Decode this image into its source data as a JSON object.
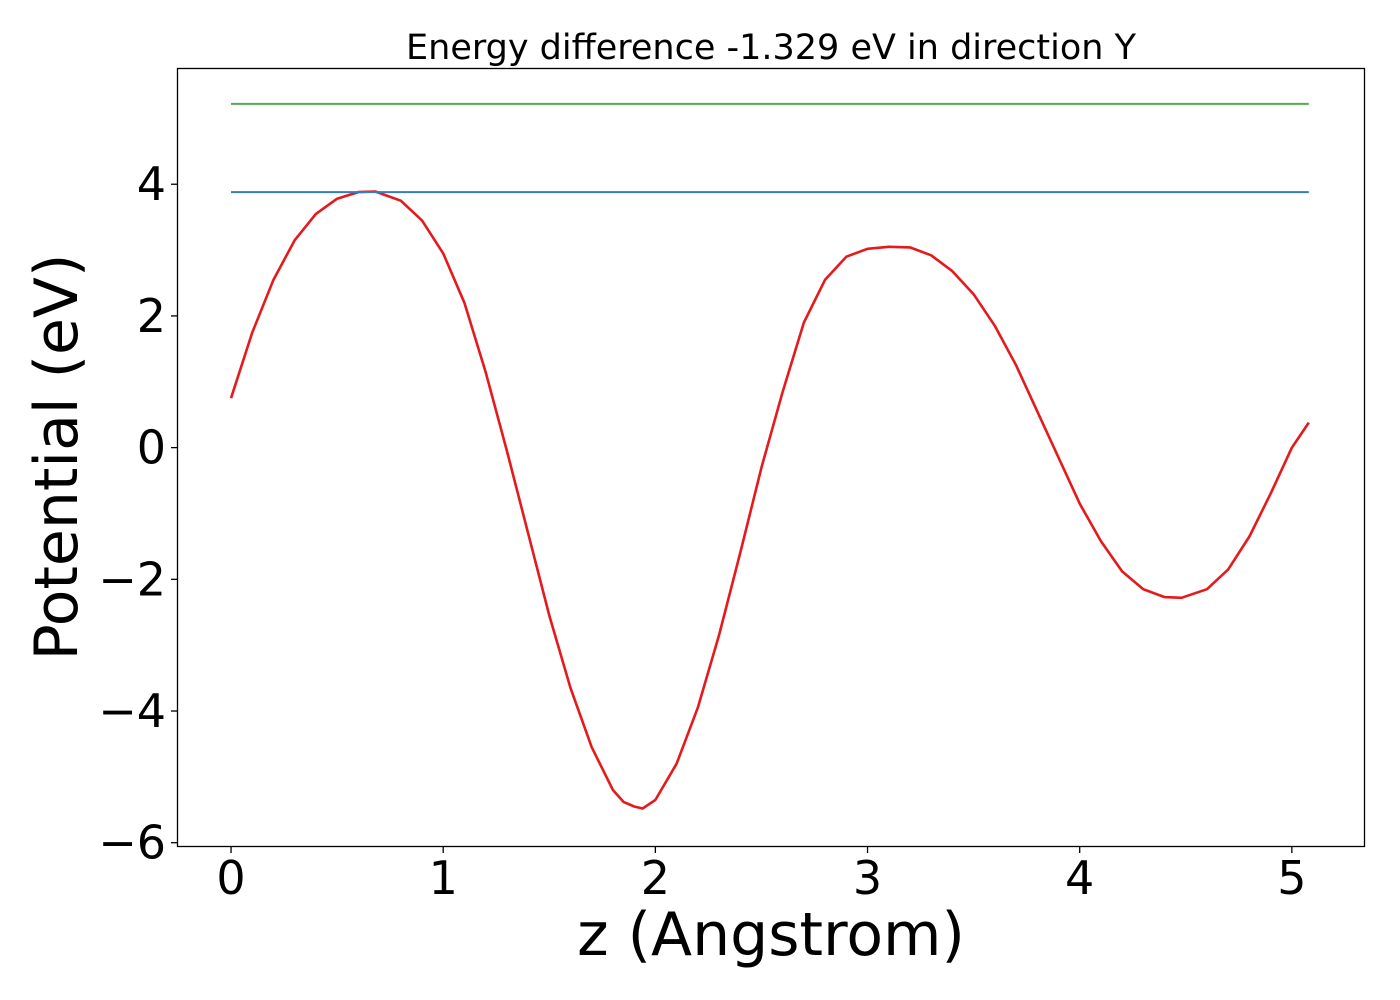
{
  "chart_data": {
    "type": "line",
    "title": "Energy difference -1.329 eV in direction Y",
    "xlabel": "z (Angstrom)",
    "ylabel": "Potential (eV)",
    "xlim": [
      -0.25,
      5.34
    ],
    "ylim": [
      -6.05,
      5.75
    ],
    "x_ticks": [
      0,
      1,
      2,
      3,
      4,
      5
    ],
    "x_tick_labels": [
      "0",
      "1",
      "2",
      "3",
      "4",
      "5"
    ],
    "y_ticks": [
      -6,
      -4,
      -2,
      0,
      2,
      4
    ],
    "y_tick_labels": [
      "−6",
      "−4",
      "−2",
      "0",
      "2",
      "4"
    ],
    "grid": false,
    "series": [
      {
        "color": "#e41a1c",
        "x": [
          0.0,
          0.1,
          0.2,
          0.3,
          0.4,
          0.5,
          0.6,
          0.68,
          0.8,
          0.9,
          1.0,
          1.1,
          1.2,
          1.3,
          1.4,
          1.5,
          1.6,
          1.7,
          1.8,
          1.85,
          1.9,
          1.94,
          2.0,
          2.1,
          2.2,
          2.3,
          2.4,
          2.5,
          2.6,
          2.7,
          2.8,
          2.9,
          3.0,
          3.1,
          3.2,
          3.3,
          3.4,
          3.5,
          3.6,
          3.7,
          3.8,
          3.9,
          4.0,
          4.1,
          4.2,
          4.3,
          4.4,
          4.48,
          4.6,
          4.7,
          4.8,
          4.9,
          5.0,
          5.08
        ],
        "y": [
          0.75,
          1.75,
          2.55,
          3.15,
          3.55,
          3.78,
          3.88,
          3.89,
          3.75,
          3.45,
          2.95,
          2.2,
          1.15,
          -0.05,
          -1.3,
          -2.55,
          -3.65,
          -4.55,
          -5.2,
          -5.38,
          -5.45,
          -5.48,
          -5.35,
          -4.8,
          -3.95,
          -2.85,
          -1.6,
          -0.3,
          0.85,
          1.9,
          2.55,
          2.9,
          3.02,
          3.05,
          3.04,
          2.92,
          2.68,
          2.33,
          1.85,
          1.25,
          0.55,
          -0.15,
          -0.85,
          -1.42,
          -1.88,
          -2.15,
          -2.27,
          -2.28,
          -2.15,
          -1.85,
          -1.35,
          -0.7,
          0.0,
          0.38
        ]
      },
      {
        "color": "#377eb8",
        "x": [
          0.0,
          5.08
        ],
        "y": [
          3.88,
          3.88
        ]
      },
      {
        "color": "#4daf4a",
        "x": [
          0.0,
          5.08
        ],
        "y": [
          5.22,
          5.22
        ]
      }
    ]
  }
}
